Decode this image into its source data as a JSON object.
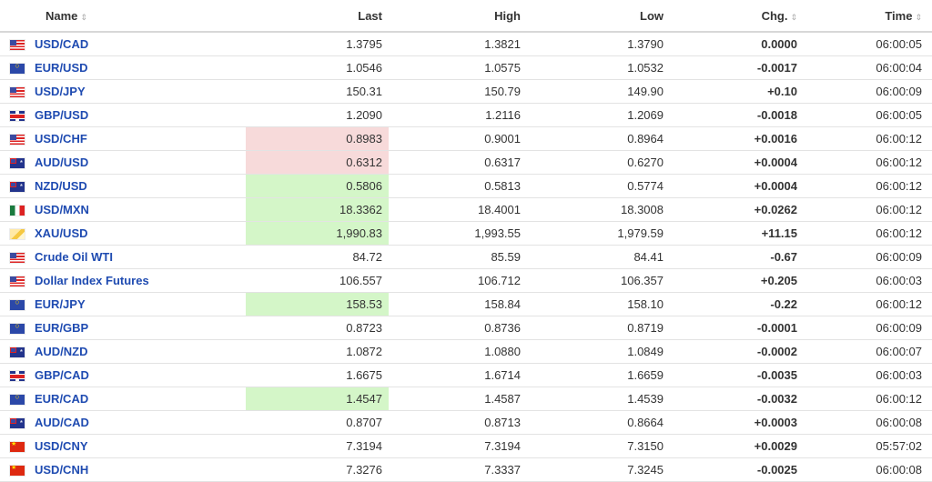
{
  "header": {
    "name": "Name",
    "last": "Last",
    "high": "High",
    "low": "Low",
    "chg": "Chg.",
    "time": "Time"
  },
  "rows": [
    {
      "flag": "us",
      "name": "USD/CAD",
      "last": "1.3795",
      "high": "1.3821",
      "low": "1.3790",
      "chg": "0.0000",
      "chg_dir": "zero",
      "time": "06:00:05",
      "highlight": ""
    },
    {
      "flag": "eu",
      "name": "EUR/USD",
      "last": "1.0546",
      "high": "1.0575",
      "low": "1.0532",
      "chg": "-0.0017",
      "chg_dir": "neg",
      "time": "06:00:04",
      "highlight": ""
    },
    {
      "flag": "us",
      "name": "USD/JPY",
      "last": "150.31",
      "high": "150.79",
      "low": "149.90",
      "chg": "+0.10",
      "chg_dir": "pos",
      "time": "06:00:09",
      "highlight": ""
    },
    {
      "flag": "gb",
      "name": "GBP/USD",
      "last": "1.2090",
      "high": "1.2116",
      "low": "1.2069",
      "chg": "-0.0018",
      "chg_dir": "neg",
      "time": "06:00:05",
      "highlight": ""
    },
    {
      "flag": "us",
      "name": "USD/CHF",
      "last": "0.8983",
      "high": "0.9001",
      "low": "0.8964",
      "chg": "+0.0016",
      "chg_dir": "pos",
      "time": "06:00:12",
      "highlight": "red"
    },
    {
      "flag": "au",
      "name": "AUD/USD",
      "last": "0.6312",
      "high": "0.6317",
      "low": "0.6270",
      "chg": "+0.0004",
      "chg_dir": "pos",
      "time": "06:00:12",
      "highlight": "red"
    },
    {
      "flag": "au",
      "name": "NZD/USD",
      "last": "0.5806",
      "high": "0.5813",
      "low": "0.5774",
      "chg": "+0.0004",
      "chg_dir": "pos",
      "time": "06:00:12",
      "highlight": "green"
    },
    {
      "flag": "mx",
      "name": "USD/MXN",
      "last": "18.3362",
      "high": "18.4001",
      "low": "18.3008",
      "chg": "+0.0262",
      "chg_dir": "pos",
      "time": "06:00:12",
      "highlight": "green"
    },
    {
      "flag": "gold",
      "name": "XAU/USD",
      "last": "1,990.83",
      "high": "1,993.55",
      "low": "1,979.59",
      "chg": "+11.15",
      "chg_dir": "pos",
      "time": "06:00:12",
      "highlight": "green"
    },
    {
      "flag": "us",
      "name": "Crude Oil WTI",
      "last": "84.72",
      "high": "85.59",
      "low": "84.41",
      "chg": "-0.67",
      "chg_dir": "neg",
      "time": "06:00:09",
      "highlight": ""
    },
    {
      "flag": "us",
      "name": "Dollar Index Futures",
      "last": "106.557",
      "high": "106.712",
      "low": "106.357",
      "chg": "+0.205",
      "chg_dir": "pos",
      "time": "06:00:03",
      "highlight": ""
    },
    {
      "flag": "eu",
      "name": "EUR/JPY",
      "last": "158.53",
      "high": "158.84",
      "low": "158.10",
      "chg": "-0.22",
      "chg_dir": "neg",
      "time": "06:00:12",
      "highlight": "green"
    },
    {
      "flag": "eu",
      "name": "EUR/GBP",
      "last": "0.8723",
      "high": "0.8736",
      "low": "0.8719",
      "chg": "-0.0001",
      "chg_dir": "neg",
      "time": "06:00:09",
      "highlight": ""
    },
    {
      "flag": "au",
      "name": "AUD/NZD",
      "last": "1.0872",
      "high": "1.0880",
      "low": "1.0849",
      "chg": "-0.0002",
      "chg_dir": "neg",
      "time": "06:00:07",
      "highlight": ""
    },
    {
      "flag": "gb",
      "name": "GBP/CAD",
      "last": "1.6675",
      "high": "1.6714",
      "low": "1.6659",
      "chg": "-0.0035",
      "chg_dir": "neg",
      "time": "06:00:03",
      "highlight": ""
    },
    {
      "flag": "eu",
      "name": "EUR/CAD",
      "last": "1.4547",
      "high": "1.4587",
      "low": "1.4539",
      "chg": "-0.0032",
      "chg_dir": "neg",
      "time": "06:00:12",
      "highlight": "green"
    },
    {
      "flag": "au",
      "name": "AUD/CAD",
      "last": "0.8707",
      "high": "0.8713",
      "low": "0.8664",
      "chg": "+0.0003",
      "chg_dir": "pos",
      "time": "06:00:08",
      "highlight": ""
    },
    {
      "flag": "cn",
      "name": "USD/CNY",
      "last": "7.3194",
      "high": "7.3194",
      "low": "7.3150",
      "chg": "+0.0029",
      "chg_dir": "pos",
      "time": "05:57:02",
      "highlight": ""
    },
    {
      "flag": "cn",
      "name": "USD/CNH",
      "last": "7.3276",
      "high": "7.3337",
      "low": "7.3245",
      "chg": "-0.0025",
      "chg_dir": "neg",
      "time": "06:00:08",
      "highlight": ""
    }
  ],
  "colors": {
    "link": "#1f4bb1",
    "positive": "#3da826",
    "negative": "#e30000",
    "highlight_up": "#d4f6c8",
    "highlight_down": "#f7dada"
  },
  "icons": {
    "sort": "sort-arrows-icon",
    "time_status": "clock-icon"
  }
}
